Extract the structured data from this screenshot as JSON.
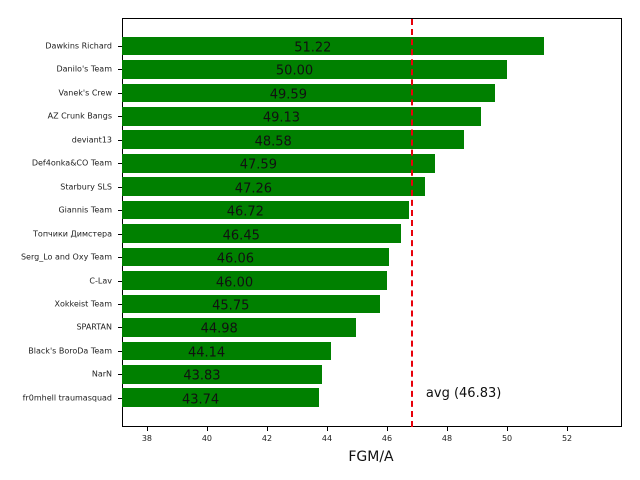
{
  "chart_data": {
    "type": "bar",
    "orientation": "horizontal",
    "title": "",
    "xlabel": "FGM/A",
    "ylabel": "",
    "xlim": [
      37.17,
      53.83
    ],
    "xticks": [
      38,
      40,
      42,
      44,
      46,
      48,
      50,
      52
    ],
    "grid": false,
    "categories": [
      "Dawkins Richard",
      "Danilo's Team",
      "Vanek's Crew",
      "AZ Crunk Bangs",
      "deviant13",
      "Def4onka&CO Team",
      "Starbury SLS",
      "Giannis Team",
      "Топчики Димстера",
      "Serg_Lo and Oxy Team",
      "C-Lav",
      "Xokkeist Team",
      "SPARTAN",
      "Black's BoroDa Team",
      "NarN",
      "fr0mhell traumasquad"
    ],
    "values": [
      51.22,
      50.0,
      49.59,
      49.13,
      48.58,
      47.59,
      47.26,
      46.72,
      46.45,
      46.06,
      46.0,
      45.75,
      44.98,
      44.14,
      43.83,
      43.74
    ],
    "value_labels": [
      "51.22",
      "50.00",
      "49.59",
      "49.13",
      "48.58",
      "47.59",
      "47.26",
      "46.72",
      "46.45",
      "46.06",
      "46.00",
      "45.75",
      "44.98",
      "44.14",
      "43.83",
      "43.74"
    ],
    "bar_color": "#008000",
    "reference_line": {
      "value": 46.83,
      "label": "avg (46.83)",
      "color": "#e8000b",
      "style": "dashed"
    }
  }
}
